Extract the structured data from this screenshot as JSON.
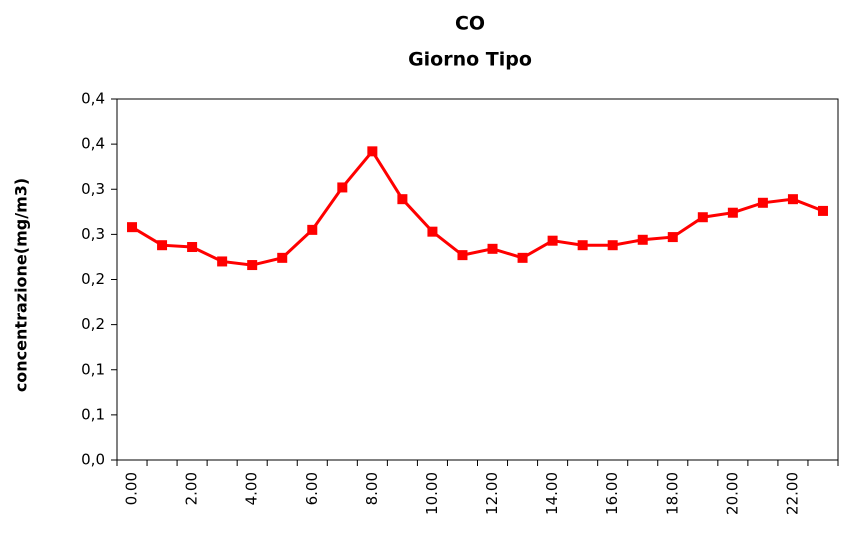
{
  "chart_data": {
    "type": "line",
    "title": "CO",
    "subtitle": "Giorno Tipo",
    "y_label": "concentrazione(mg/m3)",
    "categories": [
      "0.00",
      null,
      "2.00",
      null,
      "4.00",
      null,
      "6.00",
      null,
      "8.00",
      null,
      "10.00",
      null,
      "12.00",
      null,
      "14.00",
      null,
      "16.00",
      null,
      "18.00",
      null,
      "20.00",
      null,
      "22.00",
      null
    ],
    "series": [
      {
        "name": "CO",
        "color": "#ff0000",
        "values": [
          0.258,
          0.238,
          0.236,
          0.22,
          0.216,
          0.224,
          0.255,
          0.302,
          0.342,
          0.289,
          0.253,
          0.227,
          0.234,
          0.224,
          0.243,
          0.238,
          0.238,
          0.244,
          0.247,
          0.269,
          0.274,
          0.285,
          0.289,
          0.276
        ]
      }
    ],
    "ylim": [
      0,
      0.4
    ],
    "yticks": [
      {
        "value": 0,
        "label": "0,0"
      },
      {
        "value": 0.05,
        "label": "0,1"
      },
      {
        "value": 0.1,
        "label": "0,1"
      },
      {
        "value": 0.15,
        "label": "0,2"
      },
      {
        "value": 0.2,
        "label": "0,2"
      },
      {
        "value": 0.25,
        "label": "0,3"
      },
      {
        "value": 0.3,
        "label": "0,3"
      },
      {
        "value": 0.35,
        "label": "0,4"
      },
      {
        "value": 0.4,
        "label": "0,4"
      }
    ],
    "grid": false
  }
}
